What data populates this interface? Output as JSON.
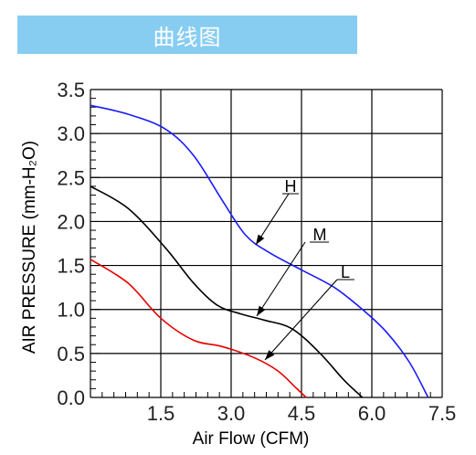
{
  "banner": {
    "title": "曲线图"
  },
  "chart_data": {
    "type": "line",
    "xlabel": "Air Flow (CFM)",
    "ylabel": "AIR PRESSURE (mm-H₂O)",
    "xlim": [
      0,
      7.5
    ],
    "ylim": [
      0,
      3.5
    ],
    "x_ticks": [
      "1.5",
      "3.0",
      "4.5",
      "6.0",
      "7.5"
    ],
    "y_ticks": [
      "0.0",
      "0.5",
      "1.0",
      "1.5",
      "2.0",
      "2.5",
      "3.0",
      "3.5"
    ],
    "grid": true,
    "series": [
      {
        "name": "H",
        "color": "#1a1aff",
        "x": [
          0,
          0.8,
          1.6,
          2.2,
          2.8,
          3.3,
          3.8,
          4.5,
          5.2,
          5.8,
          6.3,
          6.8,
          7.2
        ],
        "y": [
          3.32,
          3.22,
          3.05,
          2.75,
          2.25,
          1.85,
          1.65,
          1.45,
          1.25,
          1.0,
          0.75,
          0.4,
          0.0
        ]
      },
      {
        "name": "M",
        "color": "#000000",
        "x": [
          0,
          0.8,
          1.6,
          2.2,
          2.7,
          3.2,
          3.7,
          4.3,
          4.9,
          5.4,
          5.8
        ],
        "y": [
          2.4,
          2.15,
          1.7,
          1.3,
          1.05,
          0.95,
          0.88,
          0.78,
          0.5,
          0.2,
          0.0
        ]
      },
      {
        "name": "L",
        "color": "#e60000",
        "x": [
          0,
          0.8,
          1.5,
          2.2,
          2.8,
          3.5,
          4.0,
          4.4,
          4.6
        ],
        "y": [
          1.57,
          1.3,
          0.9,
          0.65,
          0.58,
          0.45,
          0.3,
          0.1,
          0.0
        ]
      }
    ]
  }
}
